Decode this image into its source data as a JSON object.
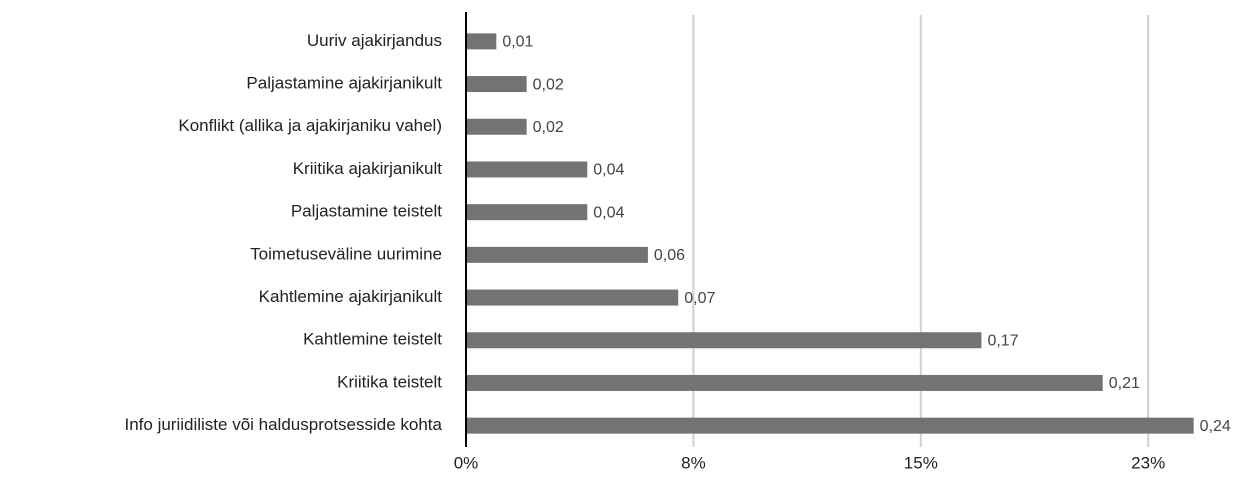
{
  "chart_data": {
    "type": "bar",
    "orientation": "horizontal",
    "categories": [
      "Uuriv ajakirjandus",
      "Paljastamine ajakirjanikult",
      "Konflikt (allika ja ajakirjaniku vahel)",
      "Kriitika ajakirjanikult",
      "Paljastamine teistelt",
      "Toimetuseväline uurimine",
      "Kahtlemine ajakirjanikult",
      "Kahtlemine teistelt",
      "Kriitika teistelt",
      "Info juriidiliste või haldusprotsesside kohta"
    ],
    "values": [
      0.01,
      0.02,
      0.02,
      0.04,
      0.04,
      0.06,
      0.07,
      0.17,
      0.21,
      0.24
    ],
    "value_labels": [
      "0,01",
      "0,02",
      "0,02",
      "0,04",
      "0,04",
      "0,06",
      "0,07",
      "0,17",
      "0,21",
      "0,24"
    ],
    "color": "#737373",
    "xlim": [
      0,
      0.25
    ],
    "xticks": [
      {
        "value": 0,
        "label": "0%"
      },
      {
        "value": 0.075,
        "label": "8%"
      },
      {
        "value": 0.15,
        "label": "15%"
      },
      {
        "value": 0.225,
        "label": "23%"
      }
    ],
    "grid": true
  }
}
